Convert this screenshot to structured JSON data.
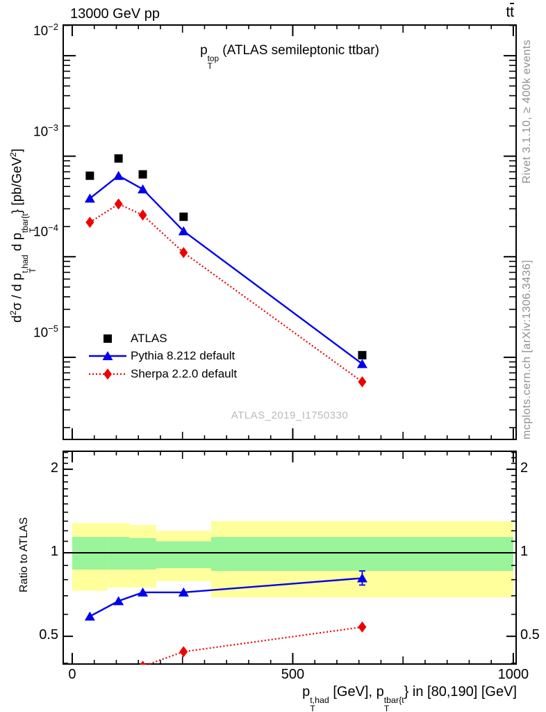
{
  "header": {
    "left": "13000 GeV pp",
    "right_parts": [
      {
        "t": "t"
      },
      {
        "bar": "t"
      }
    ]
  },
  "labels": {
    "title_parts": [
      {
        "t": "p"
      },
      {
        "supsub": [
          "top",
          "T"
        ]
      },
      {
        "t": " (ATLAS semileptonic ttbar)"
      }
    ],
    "y_axis_parts": [
      {
        "t": "d"
      },
      {
        "sup": "2"
      },
      {
        "t": "σ / d p"
      },
      {
        "supsub": [
          "t,had",
          "T"
        ]
      },
      {
        "t": " d p"
      },
      {
        "supsub": [
          "tbar{t",
          "T"
        ]
      },
      {
        "t": "} [pb/GeV"
      },
      {
        "sup": "2"
      },
      {
        "t": "]"
      }
    ],
    "x_axis_parts": [
      {
        "t": "p"
      },
      {
        "supsub": [
          "t,had",
          "T"
        ]
      },
      {
        "t": " [GeV], p"
      },
      {
        "supsub": [
          "tbar{t",
          "T"
        ]
      },
      {
        "t": "} in [80,190] [GeV]"
      }
    ],
    "ratio_axis": "Ratio to ATLAS",
    "watermark": "ATLAS_2019_I1750330"
  },
  "side_notes": {
    "top": "Rivet 3.1.10, ≥ 400k events",
    "bottom": "mcplots.cern.ch [arXiv:1306.3436]"
  },
  "legend": {
    "items": [
      {
        "label": "ATLAS",
        "marker": "square",
        "color": "#000000",
        "line": "none"
      },
      {
        "label": "Pythia 8.212 default",
        "marker": "triangle",
        "color": "#0000ee",
        "line": "solid"
      },
      {
        "label": "Sherpa 2.2.0 default",
        "marker": "diamond",
        "color": "#ee0000",
        "line": "dotted"
      }
    ]
  },
  "colors": {
    "pythia_blue": "#0000ee",
    "sherpa_red": "#ee0000",
    "band_yellow": "#ffff9c",
    "band_green": "#99f49a",
    "frame": "#000000",
    "side_note_gray": "#8f8f8f",
    "watermark_gray": "#b9b9b9"
  },
  "chart_data": {
    "type": "line",
    "title": "pT^top (ATLAS semileptonic ttbar)",
    "xlabel": "pT^{t,had} [GeV], pT^{tbar{t}} in [80,190] [GeV]",
    "ylabel": "d2sigma / d pT^{t,had} d pT^{tbar{t}} [pb/GeV^2]",
    "x_bin_edges_gev": [
      0,
      80,
      130,
      190,
      315,
      1000
    ],
    "x_bin_centers_gev": [
      40,
      105,
      160,
      252.5,
      657.5
    ],
    "x_axis": {
      "range_gev": [
        -22,
        1008
      ],
      "major_ticks": [
        {
          "v": 0,
          "label": "0"
        },
        {
          "v": 500,
          "label": "500"
        },
        {
          "v": 1000,
          "label": "1000"
        }
      ],
      "mid_ticks": [
        250,
        750
      ],
      "minor_step": 50
    },
    "y_axis": {
      "scale": "log",
      "range": [
        1.5e-06,
        0.0205
      ],
      "major_ticks": [
        {
          "exp": -2
        },
        {
          "exp": -3
        },
        {
          "exp": -4
        },
        {
          "exp": -5
        }
      ]
    },
    "series": [
      {
        "name": "ATLAS",
        "marker": "square",
        "color": "#000000",
        "line": "none",
        "values": [
          0.00064,
          0.00095,
          0.00066,
          0.00025,
          1.05e-05
        ]
      },
      {
        "name": "Pythia 8.212 default",
        "marker": "triangle",
        "color": "#0000ee",
        "line": "solid",
        "values": [
          0.00038,
          0.00064,
          0.00047,
          0.00018,
          8.6e-06
        ]
      },
      {
        "name": "Sherpa 2.2.0 default",
        "marker": "diamond",
        "color": "#ee0000",
        "line": "dotted",
        "values": [
          0.00022,
          0.000335,
          0.00026,
          0.00011,
          5.7e-06
        ]
      }
    ],
    "ratio_panel": {
      "y_label": "Ratio to ATLAS",
      "scale": "log",
      "range": [
        0.395,
        2.335
      ],
      "reference": 1,
      "major_ticks": [
        {
          "v": 0.5,
          "label": "0.5"
        },
        {
          "v": 1,
          "label": "1"
        },
        {
          "v": 2,
          "label": "2"
        }
      ],
      "minor_ticks": [
        0.4,
        0.6,
        0.7,
        0.8,
        0.9,
        1.1,
        1.2,
        1.3,
        1.4,
        1.5,
        1.6,
        1.7,
        1.8,
        1.9,
        2.1,
        2.2,
        2.3
      ],
      "series": [
        {
          "name": "Pythia 8.212 default",
          "color": "#0000ee",
          "marker": "triangle",
          "line": "solid",
          "values": [
            0.59,
            0.67,
            0.72,
            0.72,
            0.81
          ],
          "err_last": [
            0.765,
            0.86
          ]
        },
        {
          "name": "Sherpa 2.2.0 default",
          "color": "#ee0000",
          "marker": "diamond",
          "line": "dotted",
          "values": [
            0.34,
            0.36,
            0.39,
            0.44,
            0.54
          ]
        }
      ],
      "bands": [
        {
          "x": [
            0,
            80
          ],
          "yellow": [
            0.73,
            1.28
          ],
          "green": [
            0.87,
            1.14
          ]
        },
        {
          "x": [
            80,
            130
          ],
          "yellow": [
            0.75,
            1.28
          ],
          "green": [
            0.87,
            1.14
          ]
        },
        {
          "x": [
            130,
            190
          ],
          "yellow": [
            0.75,
            1.26
          ],
          "green": [
            0.87,
            1.13
          ]
        },
        {
          "x": [
            190,
            315
          ],
          "yellow": [
            0.79,
            1.2
          ],
          "green": [
            0.88,
            1.1
          ]
        },
        {
          "x": [
            315,
            1000
          ],
          "yellow": [
            0.69,
            1.3
          ],
          "green": [
            0.86,
            1.14
          ]
        }
      ]
    }
  }
}
